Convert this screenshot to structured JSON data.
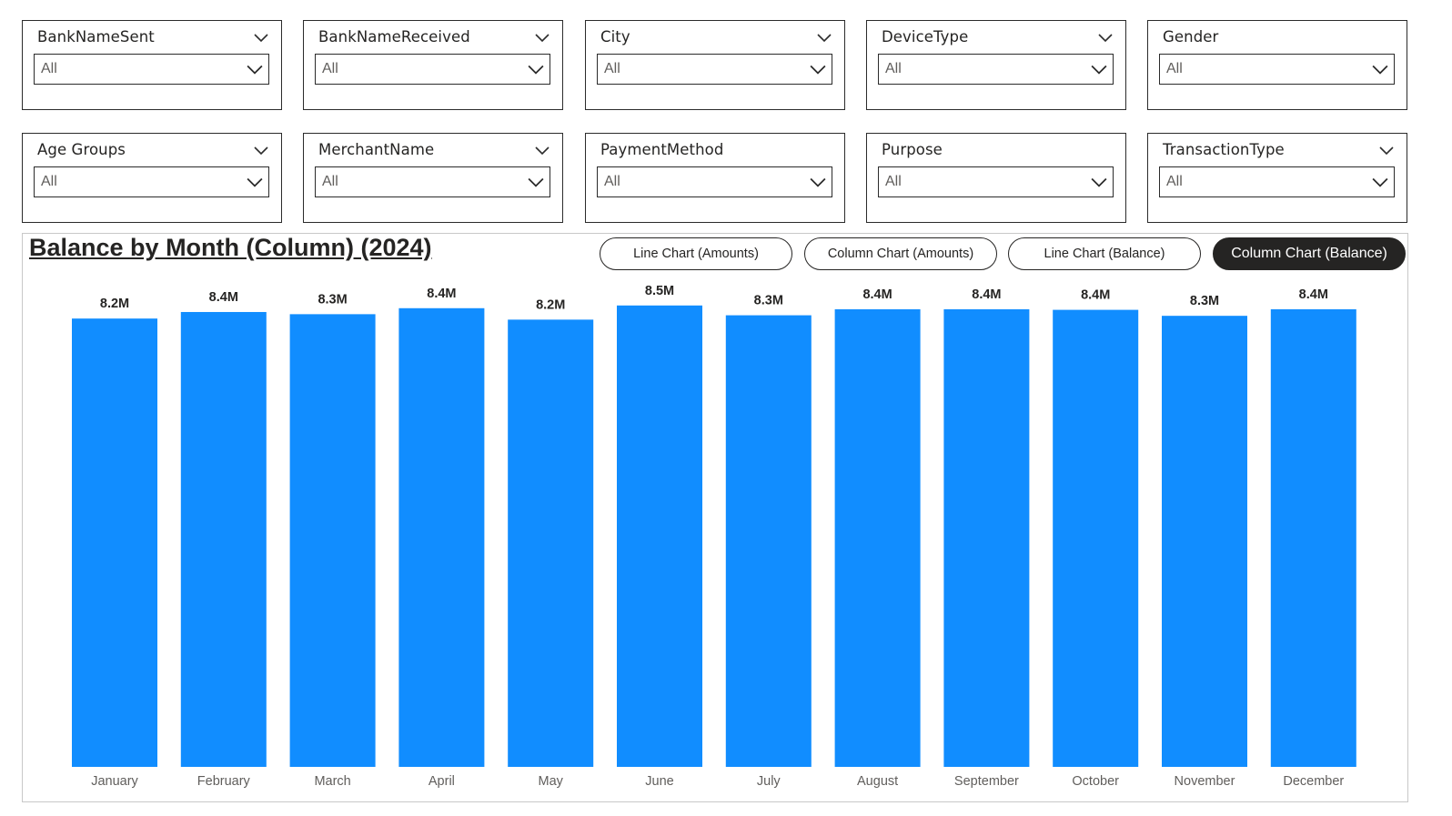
{
  "slicers": [
    {
      "title": "BankNameSent",
      "value": "All"
    },
    {
      "title": "BankNameReceived",
      "value": "All"
    },
    {
      "title": "City",
      "value": "All"
    },
    {
      "title": "DeviceType",
      "value": "All"
    },
    {
      "title": "Gender",
      "value": "All"
    },
    {
      "title": "Age Groups",
      "value": "All"
    },
    {
      "title": "MerchantName",
      "value": "All"
    },
    {
      "title": "PaymentMethod",
      "value": "All"
    },
    {
      "title": "Purpose",
      "value": "All"
    },
    {
      "title": "TransactionType",
      "value": "All"
    }
  ],
  "slicer_header_chevron": [
    true,
    true,
    true,
    true,
    false,
    true,
    true,
    false,
    false,
    true
  ],
  "toggles": [
    {
      "label": "Line Chart (Amounts)",
      "active": false
    },
    {
      "label": "Column Chart (Amounts)",
      "active": false
    },
    {
      "label": "Line Chart (Balance)",
      "active": false
    },
    {
      "label": "Column Chart (Balance)",
      "active": true
    }
  ],
  "colors": {
    "bar": "#118DFF",
    "active_button": "#252423",
    "border": "#2b2b2b"
  },
  "chart_data": {
    "type": "bar",
    "title": "Balance by Month (Column) (2024)",
    "xlabel": "",
    "ylabel": "",
    "categories": [
      "January",
      "February",
      "March",
      "April",
      "May",
      "June",
      "July",
      "August",
      "September",
      "October",
      "November",
      "December"
    ],
    "values": [
      8.23,
      8.35,
      8.31,
      8.42,
      8.21,
      8.47,
      8.29,
      8.4,
      8.4,
      8.39,
      8.28,
      8.4
    ],
    "data_labels": [
      "8.2M",
      "8.4M",
      "8.3M",
      "8.4M",
      "8.2M",
      "8.5M",
      "8.3M",
      "8.4M",
      "8.4M",
      "8.4M",
      "8.3M",
      "8.4M"
    ],
    "ylim": [
      0,
      8.5
    ],
    "grid": false,
    "legend": "none"
  }
}
